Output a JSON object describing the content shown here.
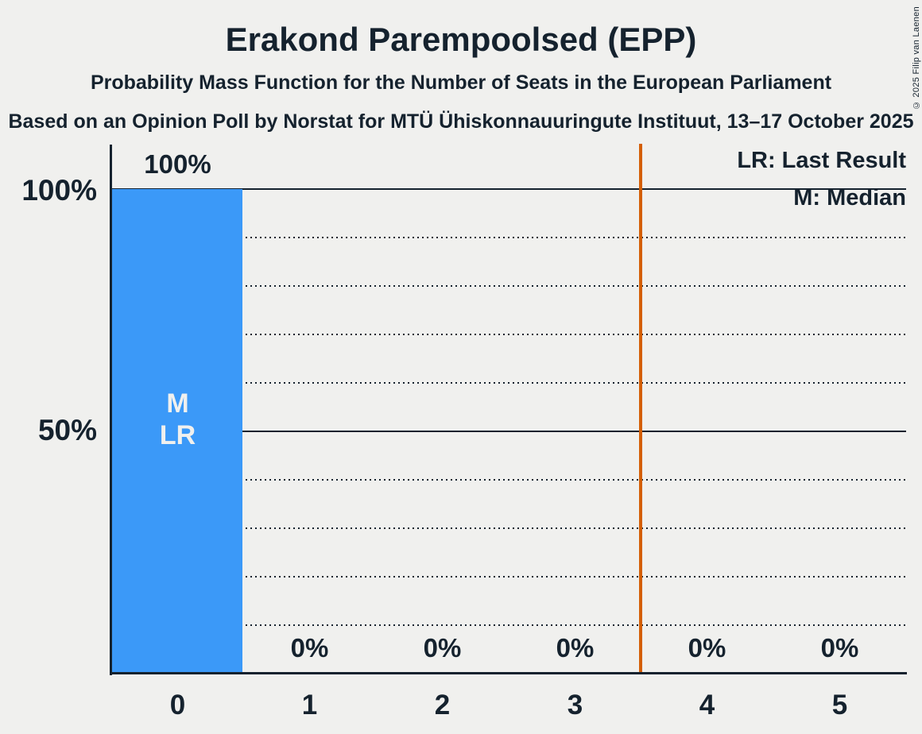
{
  "header": {
    "title": "Erakond Parempoolsed (EPP)",
    "subtitle": "Probability Mass Function for the Number of Seats in the European Parliament",
    "source_line": "Based on an Opinion Poll by Norstat for MTÜ Ühiskonnauuringute Instituut, 13–17 October 2025",
    "copyright": "© 2025 Filip van Laenen"
  },
  "legend": {
    "last_result": "LR: Last Result",
    "median": "M: Median"
  },
  "y_axis": {
    "tick_labels": {
      "top": "100%",
      "middle": "50%"
    }
  },
  "chart_data": {
    "type": "bar",
    "title": "Erakond Parempoolsed (EPP)",
    "categories": [
      "0",
      "1",
      "2",
      "3",
      "4",
      "5"
    ],
    "values": [
      100,
      0,
      0,
      0,
      0,
      0
    ],
    "value_labels": [
      "100%",
      "0%",
      "0%",
      "0%",
      "0%",
      "0%"
    ],
    "xlabel": "",
    "ylabel": "",
    "ylim": [
      0,
      100
    ],
    "y_gridlines_solid_pct": [
      100,
      50
    ],
    "y_gridlines_dotted_pct": [
      90,
      80,
      70,
      60,
      40,
      30,
      20,
      10
    ],
    "median_seats": 0,
    "last_result_seats": 0,
    "bar_annotations": {
      "median": "M",
      "last_result": "LR"
    },
    "threshold_line_x": 3.5,
    "legend_position": "top-right",
    "grid": "on"
  },
  "colors": {
    "background": "#f0f0ee",
    "text": "#15222e",
    "bar": "#3b99f8",
    "bar_label": "#f0f0ee",
    "threshold_line": "#d45f05"
  }
}
